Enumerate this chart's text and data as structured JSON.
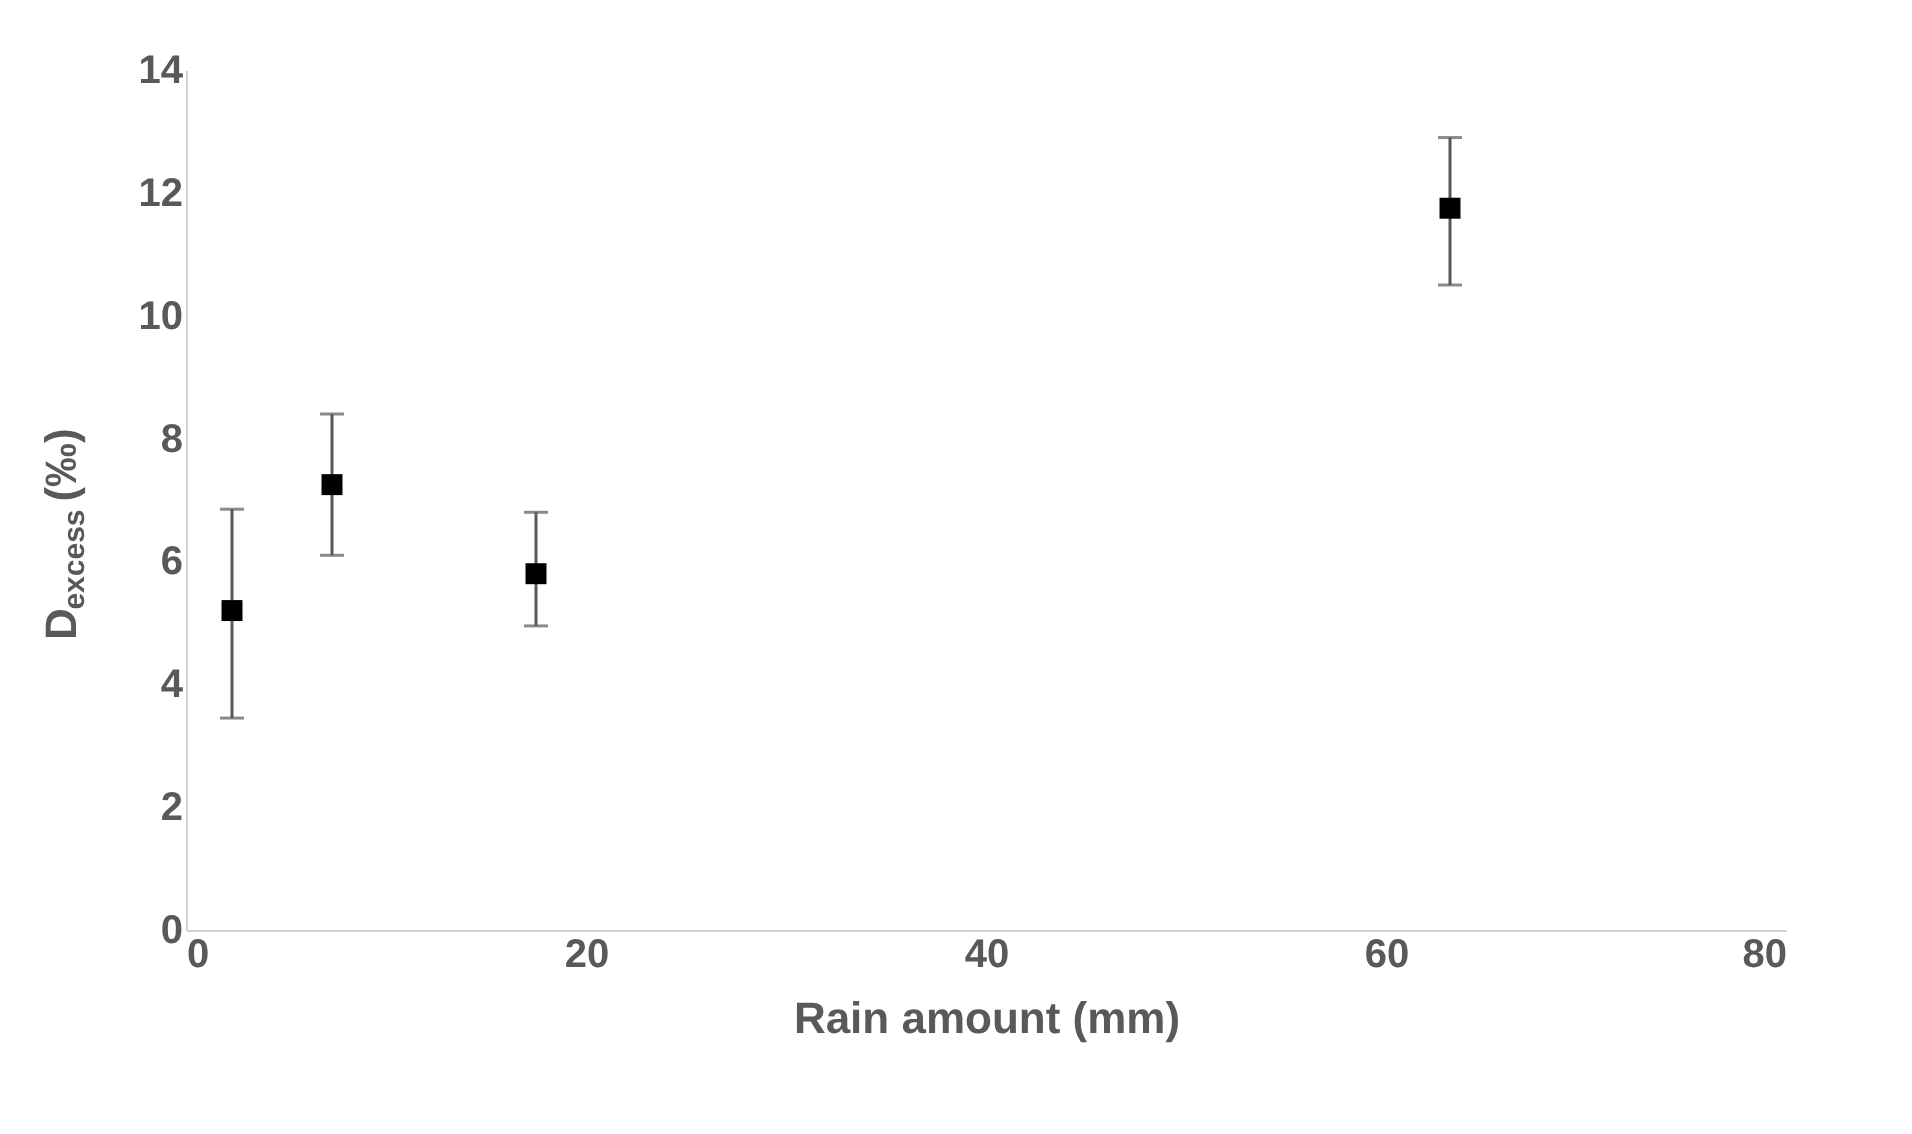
{
  "chart_data": {
    "type": "scatter",
    "xlabel": "Rain amount (mm)",
    "ylabel": "D$_{excess}$ (‰)",
    "x": [
      2.3,
      7.3,
      17.5,
      63.2
    ],
    "series": [
      {
        "color": "#000000",
        "values": [
          5.2,
          7.25,
          5.8,
          11.75
        ],
        "errors": [
          [
            3.45,
            6.85
          ],
          [
            6.1,
            8.4
          ],
          [
            4.95,
            6.8
          ],
          [
            10.5,
            12.9
          ]
        ]
      }
    ],
    "xlim": [
      0,
      80
    ],
    "xticks": [
      0,
      20,
      40,
      60,
      80
    ],
    "ylim": [
      0,
      14
    ],
    "yticks": [
      0,
      2,
      4,
      6,
      8,
      10,
      12,
      14
    ],
    "marker": "square",
    "grid": false
  }
}
